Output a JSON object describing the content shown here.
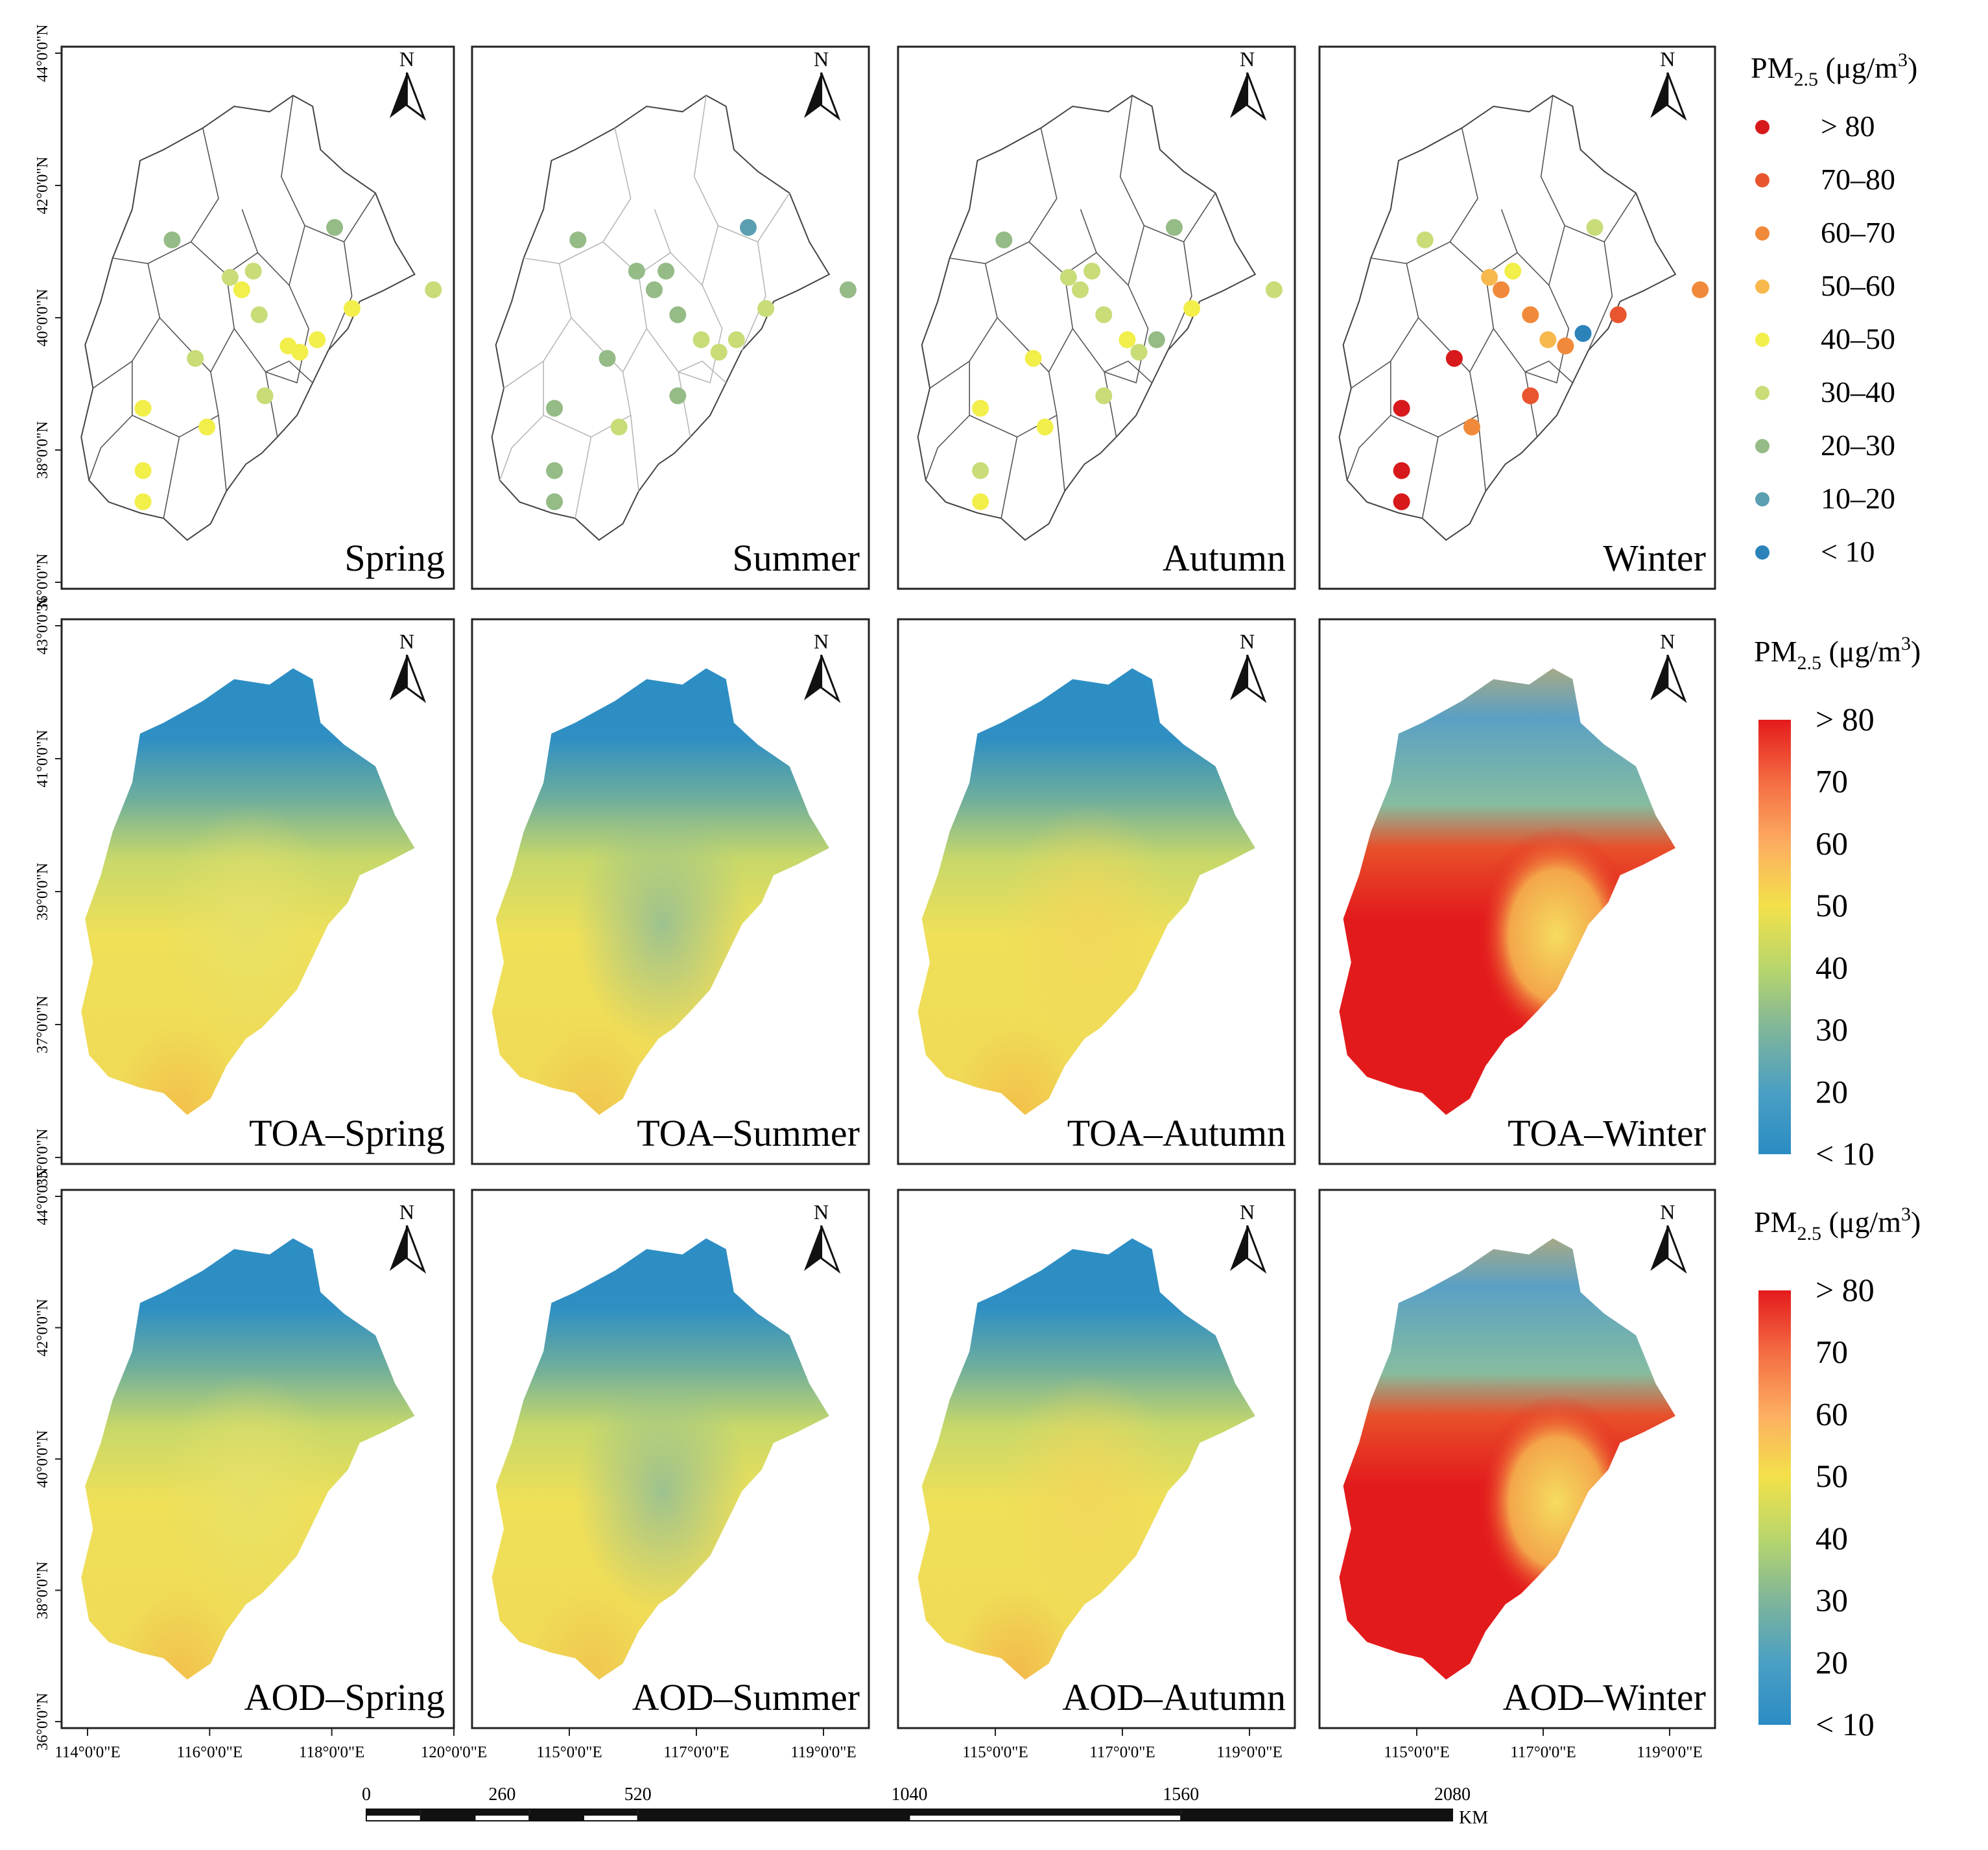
{
  "rows": [
    {
      "id": "stations",
      "lat_ticks": [
        "44°0'0\"N",
        "42°0'0\"N",
        "40°0'0\"N",
        "38°0'0\"N",
        "36°0'0\"N"
      ],
      "panels": [
        {
          "label": "Spring"
        },
        {
          "label": "Summer"
        },
        {
          "label": "Autumn"
        },
        {
          "label": "Winter"
        }
      ]
    },
    {
      "id": "toa",
      "lat_ticks": [
        "43°0'0\"N",
        "41°0'0\"N",
        "39°0'0\"N",
        "37°0'0\"N",
        "35°0'0\"N"
      ],
      "panels": [
        {
          "label": "TOA–Spring"
        },
        {
          "label": "TOA–Summer"
        },
        {
          "label": "TOA–Autumn"
        },
        {
          "label": "TOA–Winter"
        }
      ]
    },
    {
      "id": "aod",
      "lat_ticks": [
        "44°0'0\"N",
        "42°0'0\"N",
        "40°0'0\"N",
        "38°0'0\"N",
        "36°0'0\"N"
      ],
      "panels": [
        {
          "label": "AOD–Spring"
        },
        {
          "label": "AOD–Summer"
        },
        {
          "label": "AOD–Autumn"
        },
        {
          "label": "AOD–Winter"
        }
      ]
    }
  ],
  "north_arrow_label": "N",
  "lon_ticks": [
    [
      "114°0'0\"E",
      "116°0'0\"E",
      "118°0'0\"E",
      "120°0'0\"E"
    ],
    [
      "115°0'0\"E",
      "117°0'0\"E",
      "119°0'0\"E"
    ],
    [
      "115°0'0\"E",
      "117°0'0\"E",
      "119°0'0\"E"
    ],
    [
      "115°0'0\"E",
      "117°0'0\"E",
      "119°0'0\"E"
    ]
  ],
  "legend_points": {
    "title_main": "PM",
    "title_sub": "2.5",
    "title_unit": " (μg/m",
    "title_sup": "3",
    "title_close": ")",
    "classes": [
      {
        "label": "> 80",
        "color": "#d7191c"
      },
      {
        "label": "70–80",
        "color": "#e8552f"
      },
      {
        "label": "60–70",
        "color": "#f08a3a"
      },
      {
        "label": "50–60",
        "color": "#f7b84d"
      },
      {
        "label": "40–50",
        "color": "#f2ee4a"
      },
      {
        "label": "30–40",
        "color": "#c8dc78"
      },
      {
        "label": "20–30",
        "color": "#95bb86"
      },
      {
        "label": "10–20",
        "color": "#5a9fb0"
      },
      {
        "label": "< 10",
        "color": "#2b83ba"
      }
    ]
  },
  "legend_ramp": {
    "title_main": "PM",
    "title_sub": "2.5",
    "title_unit": " (μg/m",
    "title_sup": "3",
    "title_close": ")",
    "labels": [
      "> 80",
      "70",
      "60",
      "50",
      "40",
      "30",
      "20",
      "< 10"
    ],
    "stops": [
      "#e41a1c",
      "#f46d43",
      "#fdae61",
      "#f3e14a",
      "#b8d66b",
      "#7fb59a",
      "#4a9fc4",
      "#2b8cc4"
    ]
  },
  "scale_bar": {
    "labels": [
      "0",
      "260",
      "520",
      "1040",
      "1560",
      "2080"
    ],
    "values": [
      0,
      260,
      520,
      1040,
      1560,
      2080
    ],
    "unit": "KM"
  },
  "stations": {
    "Spring": [
      [
        115.1,
        40.8,
        "#95bb86"
      ],
      [
        117.9,
        41.0,
        "#95bb86"
      ],
      [
        116.1,
        40.2,
        "#c8dc78"
      ],
      [
        116.3,
        40.0,
        "#f2ee4a"
      ],
      [
        116.5,
        40.3,
        "#c8dc78"
      ],
      [
        116.6,
        39.6,
        "#c8dc78"
      ],
      [
        117.1,
        39.1,
        "#f2ee4a"
      ],
      [
        117.3,
        39.0,
        "#f2ee4a"
      ],
      [
        117.6,
        39.2,
        "#f2ee4a"
      ],
      [
        118.2,
        39.7,
        "#f2ee4a"
      ],
      [
        119.6,
        40.0,
        "#c8dc78"
      ],
      [
        115.5,
        38.9,
        "#c8dc78"
      ],
      [
        116.7,
        38.3,
        "#c8dc78"
      ],
      [
        115.7,
        37.8,
        "#f2ee4a"
      ],
      [
        114.6,
        38.1,
        "#f2ee4a"
      ],
      [
        114.6,
        37.1,
        "#f2ee4a"
      ],
      [
        114.6,
        36.6,
        "#f2ee4a"
      ]
    ],
    "Summer": [
      [
        115.0,
        40.8,
        "#95bb86"
      ],
      [
        117.9,
        41.0,
        "#5a9fb0"
      ],
      [
        116.0,
        40.3,
        "#95bb86"
      ],
      [
        116.3,
        40.0,
        "#95bb86"
      ],
      [
        116.5,
        40.3,
        "#95bb86"
      ],
      [
        116.7,
        39.6,
        "#95bb86"
      ],
      [
        117.1,
        39.2,
        "#c8dc78"
      ],
      [
        117.4,
        39.0,
        "#c8dc78"
      ],
      [
        117.7,
        39.2,
        "#c8dc78"
      ],
      [
        118.2,
        39.7,
        "#c8dc78"
      ],
      [
        119.6,
        40.0,
        "#95bb86"
      ],
      [
        115.5,
        38.9,
        "#95bb86"
      ],
      [
        116.7,
        38.3,
        "#95bb86"
      ],
      [
        115.7,
        37.8,
        "#c8dc78"
      ],
      [
        114.6,
        38.1,
        "#95bb86"
      ],
      [
        114.6,
        37.1,
        "#95bb86"
      ],
      [
        114.6,
        36.6,
        "#95bb86"
      ]
    ],
    "Autumn": [
      [
        115.0,
        40.8,
        "#95bb86"
      ],
      [
        117.9,
        41.0,
        "#95bb86"
      ],
      [
        116.1,
        40.2,
        "#c8dc78"
      ],
      [
        116.3,
        40.0,
        "#c8dc78"
      ],
      [
        116.5,
        40.3,
        "#c8dc78"
      ],
      [
        116.7,
        39.6,
        "#c8dc78"
      ],
      [
        117.1,
        39.2,
        "#f2ee4a"
      ],
      [
        117.3,
        39.0,
        "#c8dc78"
      ],
      [
        117.6,
        39.2,
        "#95bb86"
      ],
      [
        118.2,
        39.7,
        "#f2ee4a"
      ],
      [
        119.6,
        40.0,
        "#c8dc78"
      ],
      [
        115.5,
        38.9,
        "#f2ee4a"
      ],
      [
        116.7,
        38.3,
        "#c8dc78"
      ],
      [
        115.7,
        37.8,
        "#f2ee4a"
      ],
      [
        114.6,
        38.1,
        "#f2ee4a"
      ],
      [
        114.6,
        37.1,
        "#c8dc78"
      ],
      [
        114.6,
        36.6,
        "#f2ee4a"
      ]
    ],
    "Winter": [
      [
        115.0,
        40.8,
        "#c8dc78"
      ],
      [
        117.9,
        41.0,
        "#c8dc78"
      ],
      [
        116.1,
        40.2,
        "#f7b84d"
      ],
      [
        116.3,
        40.0,
        "#f08a3a"
      ],
      [
        116.5,
        40.3,
        "#f2ee4a"
      ],
      [
        116.8,
        39.6,
        "#f08a3a"
      ],
      [
        117.1,
        39.2,
        "#f7b84d"
      ],
      [
        117.4,
        39.1,
        "#f08a3a"
      ],
      [
        117.7,
        39.3,
        "#2b83ba"
      ],
      [
        118.3,
        39.6,
        "#e8552f"
      ],
      [
        119.7,
        40.0,
        "#f08a3a"
      ],
      [
        115.5,
        38.9,
        "#d7191c"
      ],
      [
        116.8,
        38.3,
        "#e8552f"
      ],
      [
        115.8,
        37.8,
        "#f08a3a"
      ],
      [
        114.6,
        38.1,
        "#d7191c"
      ],
      [
        114.6,
        37.1,
        "#d7191c"
      ],
      [
        114.6,
        36.6,
        "#d7191c"
      ]
    ]
  },
  "fields": {
    "stations": {
      "type": "none"
    },
    "toa": [
      {
        "type": "spring",
        "sw": "#f3c04a"
      },
      {
        "type": "summer",
        "sw": "#f0c64e"
      },
      {
        "type": "autumn",
        "sw": "#f3c04a"
      },
      {
        "type": "winter"
      }
    ],
    "aod": [
      {
        "type": "spring",
        "sw": "#f2c04c"
      },
      {
        "type": "summer",
        "sw": "#f0c64e"
      },
      {
        "type": "autumn",
        "sw": "#f3b84a"
      },
      {
        "type": "winter"
      }
    ]
  }
}
